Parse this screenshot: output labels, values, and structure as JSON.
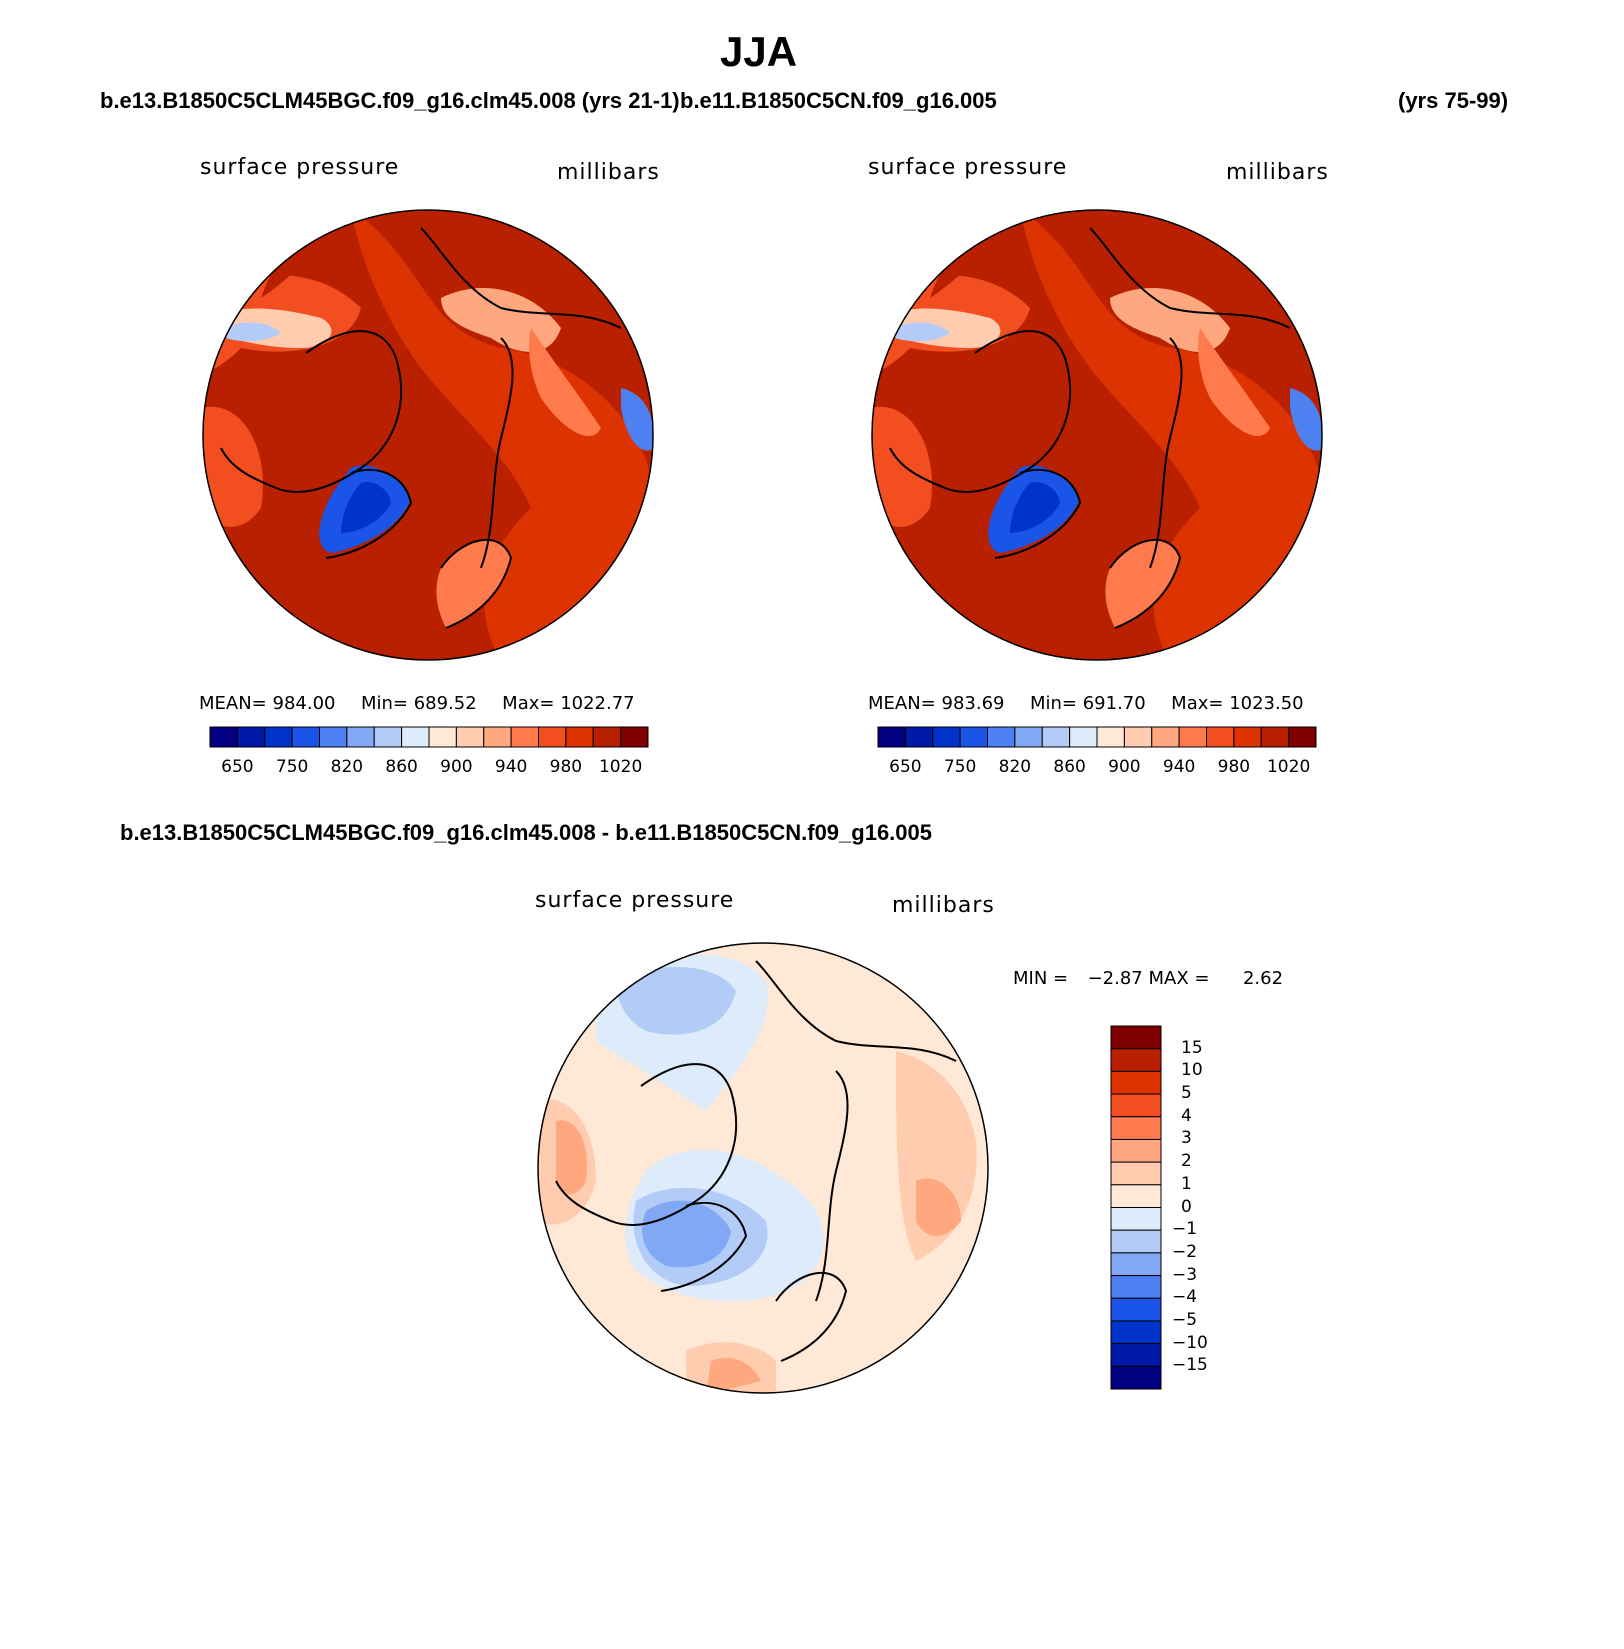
{
  "title": "JJA",
  "case_left": "b.e13.B1850C5CLM45BGC.f09_g16.clm45.008 (yrs 21-1)",
  "case_right": "b.e11.B1850C5CN.f09_g16.005",
  "case_right_years": "(yrs 75-99)",
  "diff_title": "b.e13.B1850C5CLM45BGC.f09_g16.clm45.008 - b.e11.B1850C5CN.f09_g16.005",
  "panels": {
    "left": {
      "variable": "surface pressure",
      "units": "millibars",
      "mean_label": "MEAN=",
      "mean": "984.00",
      "min_label": "Min=",
      "min": "689.52",
      "max_label": "Max=",
      "max": "1022.77"
    },
    "right": {
      "variable": "surface pressure",
      "units": "millibars",
      "mean_label": "MEAN=",
      "mean": "983.69",
      "min_label": "Min=",
      "min": "691.70",
      "max_label": "Max=",
      "max": "1023.50"
    },
    "diff": {
      "variable": "surface pressure",
      "units": "millibars",
      "min_label": "MIN =",
      "min": "−2.87",
      "max_label": "MAX =",
      "max": "2.62"
    }
  },
  "colorbar_abs": {
    "labels": [
      "650",
      "750",
      "820",
      "860",
      "900",
      "940",
      "980",
      "1020"
    ],
    "colors": [
      "#000080",
      "#0019A8",
      "#0033CC",
      "#1A55E8",
      "#4D80F0",
      "#80A8F5",
      "#B3CCF7",
      "#DDEBFA",
      "#FFE8D6",
      "#FFCCB0",
      "#FFA880",
      "#FF7A4D",
      "#F24E20",
      "#DD3300",
      "#B82000",
      "#800000"
    ]
  },
  "colorbar_diff": {
    "labels": [
      "15",
      "10",
      "5",
      "4",
      "3",
      "2",
      "1",
      "0",
      "−1",
      "−2",
      "−3",
      "−4",
      "−5",
      "−10",
      "−15"
    ],
    "colors": [
      "#800000",
      "#B82000",
      "#DD3300",
      "#F24E20",
      "#FF7A4D",
      "#FFA880",
      "#FFCCB0",
      "#FFE8D6",
      "#DDEBFA",
      "#B3CCF7",
      "#80A8F5",
      "#4D80F0",
      "#1A55E8",
      "#0033CC",
      "#0019A8",
      "#000080"
    ]
  }
}
